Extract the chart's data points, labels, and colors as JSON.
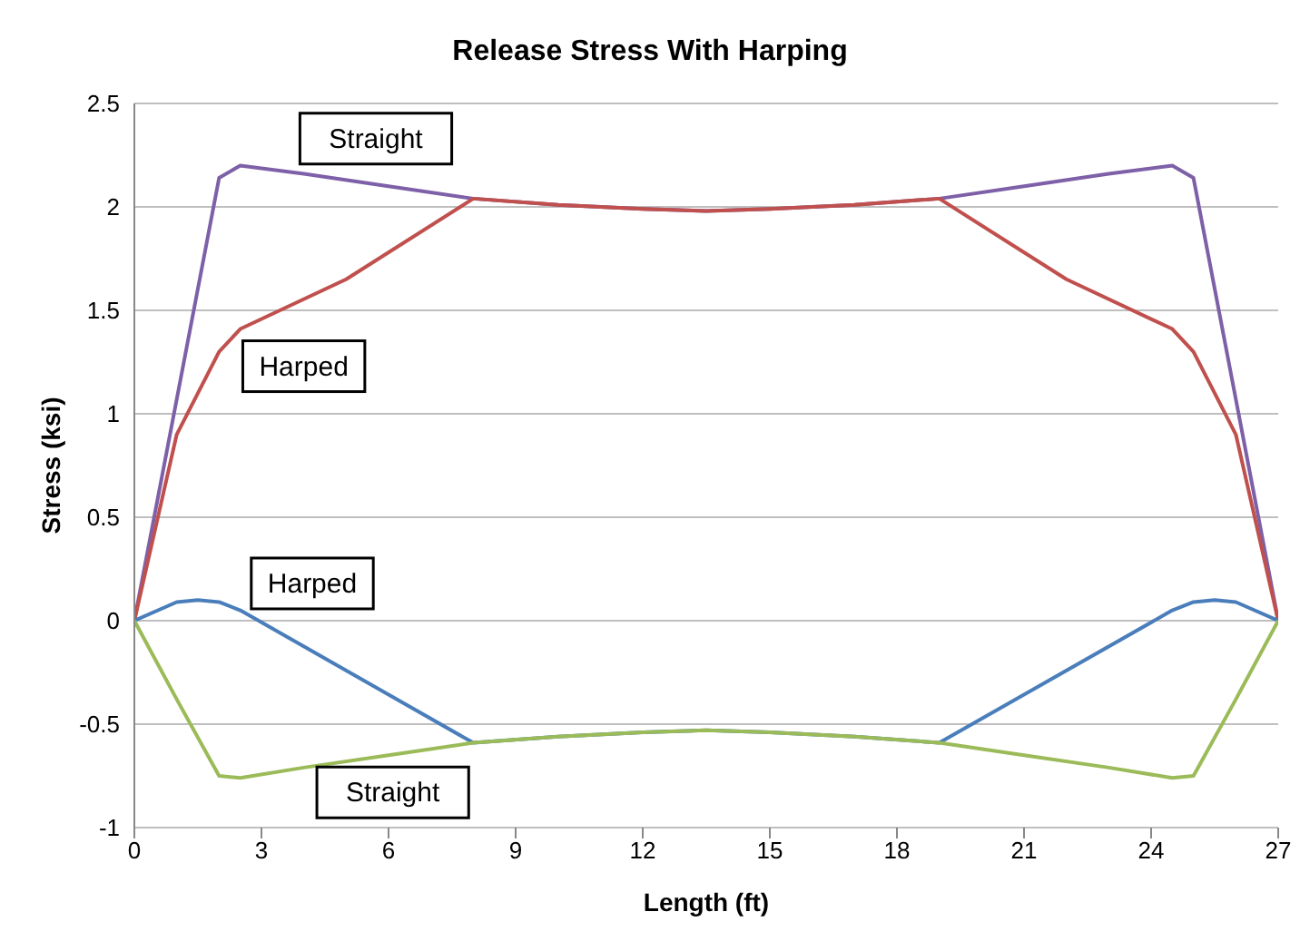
{
  "chart_data": {
    "type": "line",
    "title": "Release Stress With Harping",
    "xlabel": "Length (ft)",
    "ylabel": "Stress (ksi)",
    "xlim": [
      0,
      27
    ],
    "xticks": [
      0,
      3,
      6,
      9,
      12,
      15,
      18,
      21,
      24,
      27
    ],
    "ylim": [
      -1,
      2.5
    ],
    "yticks": [
      -1,
      -0.5,
      0,
      0.5,
      1,
      1.5,
      2,
      2.5
    ],
    "grid": "y",
    "marker": "none",
    "line_style": "solid",
    "series": [
      {
        "color": "#7e60a8",
        "x": [
          0,
          2,
          2.5,
          4,
          6,
          8,
          10,
          12,
          13.5,
          15,
          17,
          19,
          21,
          23,
          24.5,
          25,
          27
        ],
        "values": [
          0,
          2.14,
          2.2,
          2.16,
          2.1,
          2.04,
          2.01,
          1.99,
          1.98,
          1.99,
          2.01,
          2.04,
          2.1,
          2.16,
          2.2,
          2.14,
          0
        ]
      },
      {
        "color": "#c0504d",
        "x": [
          0,
          1,
          2,
          2.5,
          5,
          8,
          10,
          12,
          13.5,
          15,
          17,
          19,
          22,
          24.5,
          25,
          26,
          27
        ],
        "values": [
          0,
          0.9,
          1.3,
          1.41,
          1.65,
          2.04,
          2.01,
          1.99,
          1.98,
          1.99,
          2.01,
          2.04,
          1.65,
          1.41,
          1.3,
          0.9,
          0
        ]
      },
      {
        "color": "#4a7ebb",
        "x": [
          0,
          1,
          1.5,
          2,
          2.5,
          8,
          10,
          12,
          13.5,
          15,
          17,
          19,
          24.5,
          25,
          25.5,
          26,
          27
        ],
        "values": [
          0,
          0.09,
          0.1,
          0.09,
          0.05,
          -0.59,
          -0.56,
          -0.54,
          -0.53,
          -0.54,
          -0.56,
          -0.59,
          0.05,
          0.09,
          0.1,
          0.09,
          0
        ]
      },
      {
        "color": "#9bbb59",
        "x": [
          0,
          1,
          2,
          2.5,
          4,
          6,
          8,
          10,
          12,
          13.5,
          15,
          17,
          19,
          21,
          23,
          24.5,
          25,
          26,
          27
        ],
        "values": [
          0,
          -0.38,
          -0.75,
          -0.76,
          -0.71,
          -0.65,
          -0.59,
          -0.56,
          -0.54,
          -0.53,
          -0.54,
          -0.56,
          -0.59,
          -0.65,
          -0.71,
          -0.76,
          -0.75,
          -0.38,
          0
        ]
      }
    ],
    "annotations": [
      "Straight",
      "Harped",
      "Harped",
      "Straight"
    ]
  }
}
